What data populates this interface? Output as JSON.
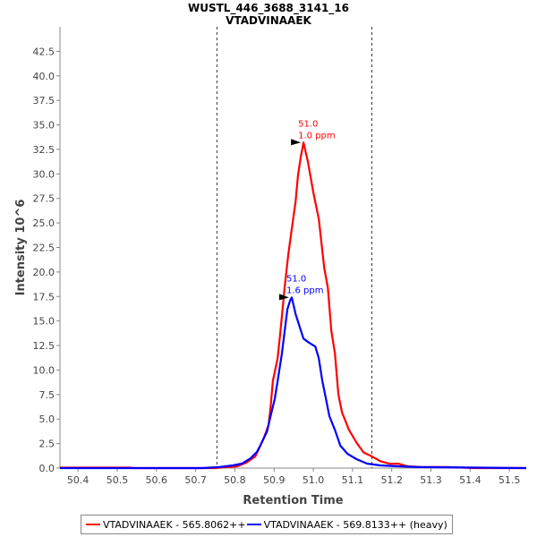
{
  "chart_data": {
    "type": "line",
    "title": "WUSTL_446_3688_3141_16",
    "subtitle": "VTADVINAAEK",
    "xlabel": "Retention Time",
    "ylabel": "Intensity 10^6",
    "xlim": [
      50.354,
      51.543
    ],
    "ylim": [
      0,
      45.0
    ],
    "xticks": [
      "50.4",
      "50.5",
      "50.6",
      "50.7",
      "50.8",
      "50.9",
      "51.0",
      "51.1",
      "51.2",
      "51.3",
      "51.4",
      "51.5"
    ],
    "yticks": [
      "0.0",
      "2.5",
      "5.0",
      "7.5",
      "10.0",
      "12.5",
      "15.0",
      "17.5",
      "20.0",
      "22.5",
      "25.0",
      "27.5",
      "30.0",
      "32.5",
      "35.0",
      "37.5",
      "40.0",
      "42.5"
    ],
    "grid": false,
    "legend_position": "bottom",
    "boundaries": [
      50.754,
      51.149
    ],
    "series": [
      {
        "name": "VTADVINAAEK - 565.8062++",
        "color": "#ff0000",
        "x": [
          50.354,
          50.532,
          50.544,
          50.749,
          50.806,
          50.829,
          50.852,
          50.863,
          50.875,
          50.886,
          50.891,
          50.897,
          50.909,
          50.916,
          50.927,
          50.936,
          50.943,
          50.955,
          50.961,
          50.968,
          50.975,
          50.986,
          51.0,
          51.014,
          51.028,
          51.037,
          51.046,
          51.055,
          51.064,
          51.073,
          51.091,
          51.11,
          51.128,
          51.149,
          51.171,
          51.194,
          51.217,
          51.24,
          51.274,
          51.342,
          51.411,
          51.543
        ],
        "y": [
          0.05,
          0.05,
          0,
          0,
          0.18,
          0.55,
          1.19,
          2.1,
          3.2,
          4.4,
          6.2,
          8.9,
          11.2,
          13.9,
          18.5,
          21.7,
          23.8,
          27.2,
          29.9,
          31.7,
          33.2,
          31.3,
          28.1,
          25.4,
          20.4,
          18.4,
          14.0,
          11.7,
          7.5,
          5.7,
          3.9,
          2.6,
          1.6,
          1.2,
          0.7,
          0.45,
          0.45,
          0.18,
          0.1,
          0.1,
          0,
          0
        ],
        "peak": {
          "x": 50.975,
          "y": 33.2,
          "label_rt": "51.0",
          "label_ppm": "1.0 ppm"
        }
      },
      {
        "name": "VTADVINAAEK - 569.8133++ (heavy)",
        "color": "#0000ff",
        "x": [
          50.354,
          50.715,
          50.761,
          50.795,
          50.818,
          50.84,
          50.856,
          50.868,
          50.882,
          50.891,
          50.902,
          50.911,
          50.92,
          50.927,
          50.934,
          50.941,
          50.945,
          50.955,
          50.966,
          50.975,
          50.989,
          51.005,
          51.014,
          51.023,
          51.032,
          51.041,
          51.055,
          51.069,
          51.087,
          51.11,
          51.137,
          51.171,
          51.217,
          51.274,
          51.543
        ],
        "y": [
          0,
          0,
          0.1,
          0.27,
          0.46,
          1.0,
          1.64,
          2.55,
          3.74,
          5.29,
          7.1,
          9.4,
          11.7,
          14.0,
          16.2,
          17.1,
          17.4,
          15.7,
          14.3,
          13.2,
          12.8,
          12.4,
          11.2,
          8.9,
          7.1,
          5.3,
          3.9,
          2.28,
          1.46,
          0.91,
          0.46,
          0.27,
          0.18,
          0.1,
          0
        ],
        "peak": {
          "x": 50.945,
          "y": 17.4,
          "label_rt": "51.0",
          "label_ppm": "1.6 ppm"
        }
      }
    ]
  }
}
